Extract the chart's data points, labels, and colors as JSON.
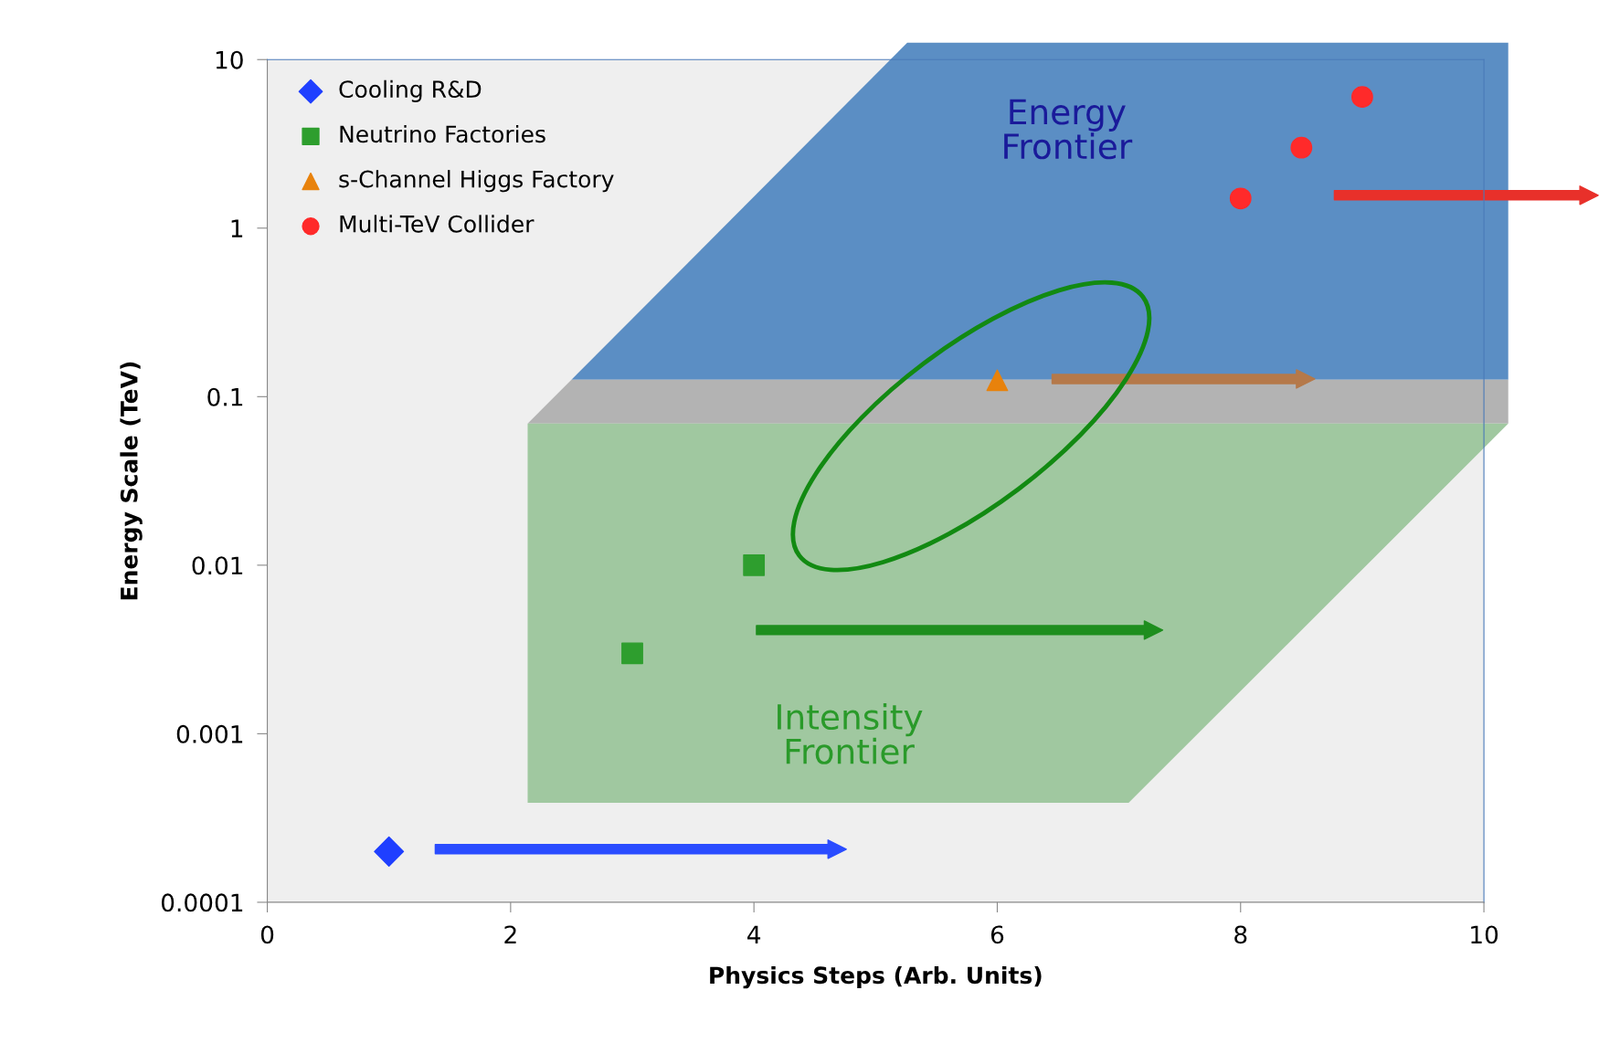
{
  "chart_data": {
    "type": "scatter",
    "xlabel": "Physics Steps (Arb. Units)",
    "ylabel": "Energy Scale (TeV)",
    "xlim": [
      0,
      10
    ],
    "xticks": [
      0,
      2,
      4,
      6,
      8,
      10
    ],
    "ylim": [
      0.0001,
      10
    ],
    "yticks": [
      0.0001,
      0.001,
      0.01,
      0.1,
      1,
      10
    ],
    "log": "y",
    "grid": false,
    "legend": "top left",
    "series": [
      {
        "name": "Cooling R&D",
        "color": "#1f3fff",
        "marker": "diamond",
        "x": [
          1
        ],
        "values": [
          0.0002
        ]
      },
      {
        "name": "Neutrino Factories",
        "color": "#2e9e2e",
        "marker": "square",
        "x": [
          3,
          4
        ],
        "values": [
          0.003,
          0.01
        ]
      },
      {
        "name": "s-Channel Higgs Factory",
        "color": "#e8820c",
        "marker": "triangle",
        "x": [
          6
        ],
        "values": [
          0.125
        ]
      },
      {
        "name": "Multi-TeV Collider",
        "color": "#ff2a2a",
        "marker": "circle",
        "x": [
          8,
          8.5,
          9
        ],
        "values": [
          1.5,
          3,
          6
        ]
      }
    ],
    "annotations": [
      "Energy Frontier",
      "Intensity Frontier"
    ]
  }
}
